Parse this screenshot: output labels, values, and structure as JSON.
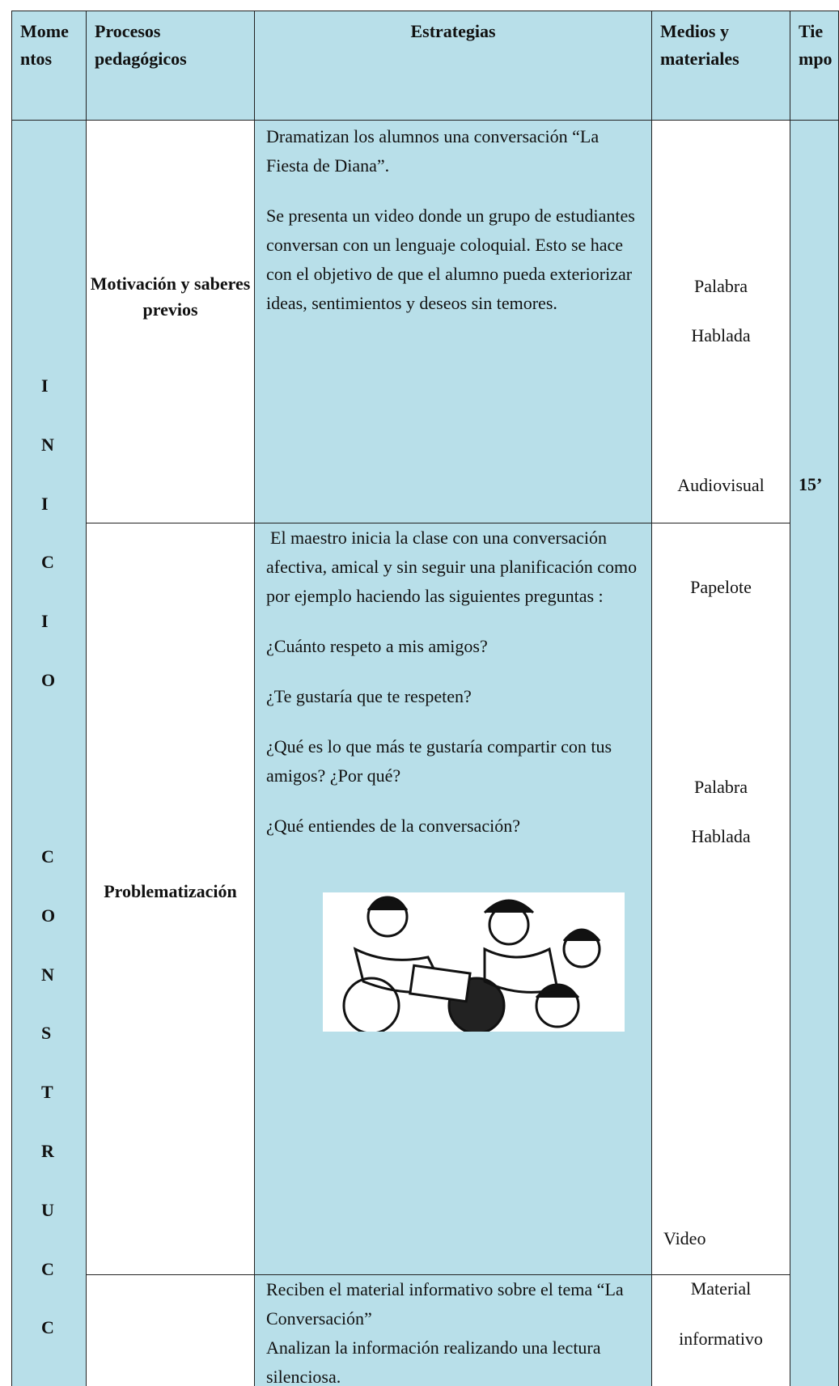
{
  "table": {
    "headers": [
      "Momentos",
      "Procesos pedagógicos",
      "Estrategias",
      "Medios y materiales",
      "Tiempo"
    ],
    "momentos": [
      [
        "I",
        "N",
        "I",
        "C",
        "I",
        "O"
      ],
      [
        "C",
        "O",
        "N",
        "S",
        "T",
        "R",
        "U",
        "C",
        "C"
      ]
    ],
    "tiempo": "15’",
    "rows": [
      {
        "proceso": "Motivación y saberes previos",
        "estrategias": [
          "Dramatizan los alumnos una conversación “La Fiesta de Diana”.",
          "Se presenta un video donde un grupo de estudiantes conversan con un lenguaje coloquial. Esto se hace con el objetivo de que el alumno pueda exteriorizar ideas, sentimientos y deseos sin temores."
        ],
        "medios": [
          "Palabra",
          "Hablada",
          "Audiovisual"
        ]
      },
      {
        "proceso": "Problematización",
        "estrategias": [
          "El maestro inicia la clase con una conversación afectiva, amical y sin seguir una planificación como por ejemplo haciendo las siguientes preguntas :",
          "¿Cuánto respeto a mis amigos?",
          "¿Te gustaría que te respeten?",
          "¿Qué es lo que más te gustaría compartir con tus amigos? ¿Por qué?",
          "¿Qué entiendes de la conversación?"
        ],
        "medios": [
          "Papelote",
          "Palabra",
          "Hablada",
          "Video"
        ]
      },
      {
        "proceso": "",
        "estrategias": [
          "Reciben el material informativo sobre el tema “La Conversación”",
          "Analizan la información realizando una lectura silenciosa."
        ],
        "medios": [
          "Material",
          "informativo"
        ]
      }
    ]
  }
}
